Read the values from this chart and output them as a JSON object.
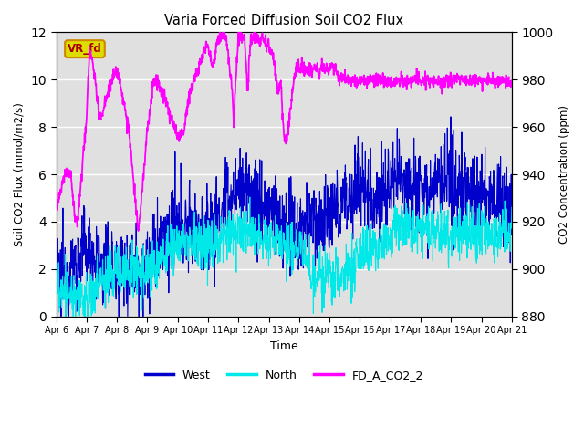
{
  "title": "Varia Forced Diffusion Soil CO2 Flux",
  "xlabel": "Time",
  "ylabel_left": "Soil CO2 Flux (mmol/m2/s)",
  "ylabel_right": "CO2 Concentration (ppm)",
  "ylim_left": [
    0,
    12
  ],
  "ylim_right": [
    880,
    1000
  ],
  "plot_bg": "#e0e0e0",
  "west_color": "#0000cc",
  "north_color": "#00e8e8",
  "co2_color": "#ff00ff",
  "annotation_text": "VR_fd",
  "annotation_bg": "#dddd00",
  "annotation_border": "#cc8800",
  "annotation_text_color": "#aa0000",
  "xtick_labels": [
    "Apr 6",
    "Apr 7",
    "Apr 8",
    "Apr 9",
    "Apr 10",
    "Apr 11",
    "Apr 12",
    "Apr 13",
    "Apr 14",
    "Apr 15",
    "Apr 16",
    "Apr 17",
    "Apr 18",
    "Apr 19",
    "Apr 20",
    "Apr 21"
  ],
  "yticks_left": [
    0,
    2,
    4,
    6,
    8,
    10,
    12
  ],
  "yticks_right": [
    880,
    900,
    920,
    940,
    960,
    980,
    1000
  ],
  "co2_keypoints": [
    [
      0.0,
      4.5
    ],
    [
      0.3,
      6.1
    ],
    [
      0.5,
      5.8
    ],
    [
      0.6,
      4.2
    ],
    [
      0.7,
      4.0
    ],
    [
      1.0,
      8.5
    ],
    [
      1.1,
      11.3
    ],
    [
      1.25,
      10.3
    ],
    [
      1.4,
      8.6
    ],
    [
      1.5,
      8.5
    ],
    [
      1.9,
      10.2
    ],
    [
      2.0,
      10.4
    ],
    [
      2.1,
      9.8
    ],
    [
      2.4,
      7.8
    ],
    [
      2.7,
      3.5
    ],
    [
      3.0,
      7.8
    ],
    [
      3.2,
      9.9
    ],
    [
      3.3,
      10.0
    ],
    [
      3.5,
      9.5
    ],
    [
      3.7,
      8.7
    ],
    [
      4.0,
      7.6
    ],
    [
      4.2,
      7.8
    ],
    [
      4.4,
      9.5
    ],
    [
      4.6,
      10.2
    ],
    [
      4.8,
      11.0
    ],
    [
      5.0,
      11.5
    ],
    [
      5.1,
      10.7
    ],
    [
      5.2,
      10.5
    ],
    [
      5.3,
      11.8
    ],
    [
      5.6,
      11.8
    ],
    [
      5.8,
      9.5
    ],
    [
      5.85,
      8.0
    ],
    [
      5.9,
      9.8
    ],
    [
      6.0,
      11.8
    ],
    [
      6.2,
      11.8
    ],
    [
      6.3,
      9.5
    ],
    [
      6.4,
      11.8
    ],
    [
      6.6,
      11.8
    ],
    [
      6.7,
      11.5
    ],
    [
      6.75,
      11.8
    ],
    [
      6.8,
      11.8
    ],
    [
      6.9,
      11.5
    ],
    [
      7.0,
      11.4
    ],
    [
      7.05,
      11.1
    ],
    [
      7.1,
      11.3
    ],
    [
      7.2,
      10.5
    ],
    [
      7.3,
      9.5
    ],
    [
      7.4,
      9.8
    ],
    [
      7.5,
      7.5
    ],
    [
      7.6,
      7.5
    ],
    [
      7.8,
      9.8
    ],
    [
      7.9,
      10.5
    ],
    [
      8.0,
      10.5
    ],
    [
      8.1,
      10.6
    ],
    [
      8.2,
      10.4
    ],
    [
      8.3,
      10.5
    ],
    [
      8.5,
      10.5
    ],
    [
      8.6,
      10.5
    ],
    [
      8.65,
      9.95
    ],
    [
      8.7,
      10.5
    ],
    [
      9.2,
      10.5
    ],
    [
      9.3,
      9.9
    ],
    [
      9.35,
      10.0
    ],
    [
      9.5,
      10.05
    ],
    [
      9.55,
      9.95
    ],
    [
      15.0,
      9.95
    ]
  ],
  "west_keypoints": [
    [
      0.0,
      1.5
    ],
    [
      0.3,
      1.7
    ],
    [
      0.5,
      2.0
    ],
    [
      0.8,
      2.5
    ],
    [
      1.0,
      2.9
    ],
    [
      1.5,
      2.0
    ],
    [
      2.0,
      2.0
    ],
    [
      2.5,
      2.2
    ],
    [
      3.0,
      2.0
    ],
    [
      3.5,
      3.0
    ],
    [
      4.0,
      3.5
    ],
    [
      4.5,
      4.0
    ],
    [
      5.0,
      3.5
    ],
    [
      5.5,
      4.5
    ],
    [
      6.0,
      5.5
    ],
    [
      6.5,
      5.0
    ],
    [
      7.0,
      4.5
    ],
    [
      7.5,
      3.5
    ],
    [
      8.0,
      3.5
    ],
    [
      8.5,
      4.0
    ],
    [
      9.0,
      4.0
    ],
    [
      9.5,
      5.0
    ],
    [
      10.0,
      5.5
    ],
    [
      10.5,
      5.0
    ],
    [
      11.0,
      5.5
    ],
    [
      11.5,
      6.0
    ],
    [
      12.0,
      5.5
    ],
    [
      12.5,
      5.5
    ],
    [
      13.0,
      5.5
    ],
    [
      13.5,
      5.5
    ],
    [
      14.0,
      5.0
    ],
    [
      14.5,
      5.0
    ],
    [
      15.0,
      4.5
    ]
  ],
  "north_keypoints": [
    [
      0.0,
      1.2
    ],
    [
      0.3,
      1.0
    ],
    [
      0.5,
      0.8
    ],
    [
      1.0,
      0.6
    ],
    [
      1.5,
      1.5
    ],
    [
      2.0,
      2.0
    ],
    [
      2.5,
      2.0
    ],
    [
      3.0,
      1.8
    ],
    [
      3.5,
      2.5
    ],
    [
      4.0,
      3.0
    ],
    [
      4.5,
      3.2
    ],
    [
      5.0,
      3.0
    ],
    [
      5.5,
      3.5
    ],
    [
      6.0,
      3.8
    ],
    [
      6.5,
      3.5
    ],
    [
      7.0,
      3.2
    ],
    [
      7.5,
      3.0
    ],
    [
      8.0,
      3.0
    ],
    [
      8.5,
      1.8
    ],
    [
      9.0,
      1.5
    ],
    [
      9.5,
      1.8
    ],
    [
      10.0,
      2.5
    ],
    [
      10.5,
      3.0
    ],
    [
      11.0,
      3.5
    ],
    [
      11.5,
      3.8
    ],
    [
      12.0,
      3.5
    ],
    [
      12.5,
      3.5
    ],
    [
      13.0,
      3.5
    ],
    [
      13.5,
      3.5
    ],
    [
      14.0,
      3.5
    ],
    [
      14.5,
      3.5
    ],
    [
      15.0,
      3.5
    ]
  ]
}
